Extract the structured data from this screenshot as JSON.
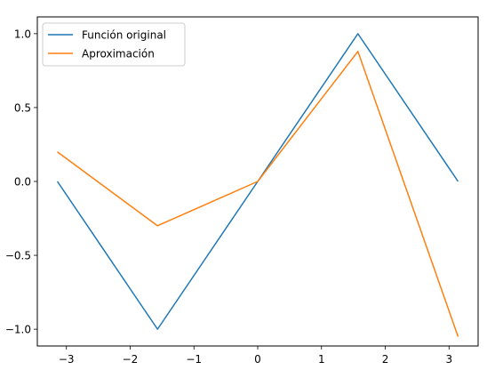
{
  "chart_data": {
    "type": "line",
    "title": "",
    "xlabel": "",
    "ylabel": "",
    "xlim": [
      -3.456,
      3.456
    ],
    "ylim": [
      -1.1135,
      1.1135
    ],
    "xticks": [
      -3,
      -2,
      -1,
      0,
      1,
      2,
      3
    ],
    "xtick_labels": [
      "−3",
      "−2",
      "−1",
      "0",
      "1",
      "2",
      "3"
    ],
    "yticks": [
      -1.0,
      -0.5,
      0.0,
      0.5,
      1.0
    ],
    "ytick_labels": [
      "−1.0",
      "−0.5",
      "0.0",
      "0.5",
      "1.0"
    ],
    "grid": false,
    "legend_position": "upper-left",
    "series": [
      {
        "name": "Función original",
        "color": "#1f77b4",
        "x": [
          -3.1416,
          -1.5708,
          0.0,
          1.5708,
          3.1416
        ],
        "y": [
          0.0,
          -1.0,
          0.0,
          1.0,
          0.0
        ]
      },
      {
        "name": "Aproximación",
        "color": "#ff7f0e",
        "x": [
          -3.1416,
          -1.5708,
          0.0,
          1.5708,
          3.1416
        ],
        "y": [
          0.2,
          -0.3,
          0.0,
          0.88,
          -1.05
        ]
      }
    ]
  }
}
